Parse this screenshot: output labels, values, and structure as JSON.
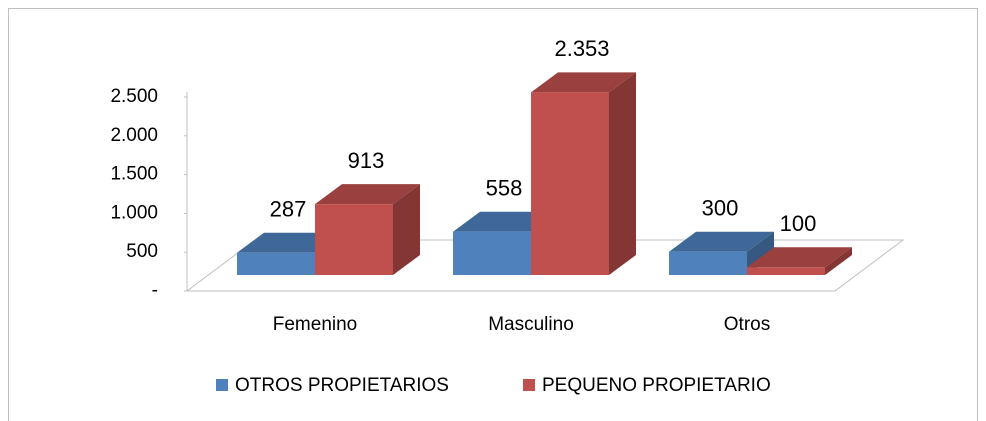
{
  "chart_data": {
    "type": "bar3d",
    "categories": [
      "Femenino",
      "Masculino",
      "Otros"
    ],
    "series": [
      {
        "name": "OTROS PROPIETARIOS",
        "color": "#4f81bd",
        "values": [
          287,
          558,
          300
        ]
      },
      {
        "name": "PEQUENO PROPIETARIO",
        "color": "#c0504d",
        "values": [
          913,
          2353,
          100
        ],
        "value_labels": [
          "913",
          "2.353",
          "100"
        ]
      }
    ],
    "ylim": [
      0,
      2500
    ],
    "yticks": [
      {
        "value": 0,
        "label": "-"
      },
      500,
      {
        "value": 1000,
        "label": "1.000"
      },
      {
        "value": 1500,
        "label": "1.500"
      },
      {
        "value": 2000,
        "label": "2.000"
      },
      {
        "value": 2500,
        "label": "2.500"
      }
    ],
    "legend": "bottom"
  }
}
